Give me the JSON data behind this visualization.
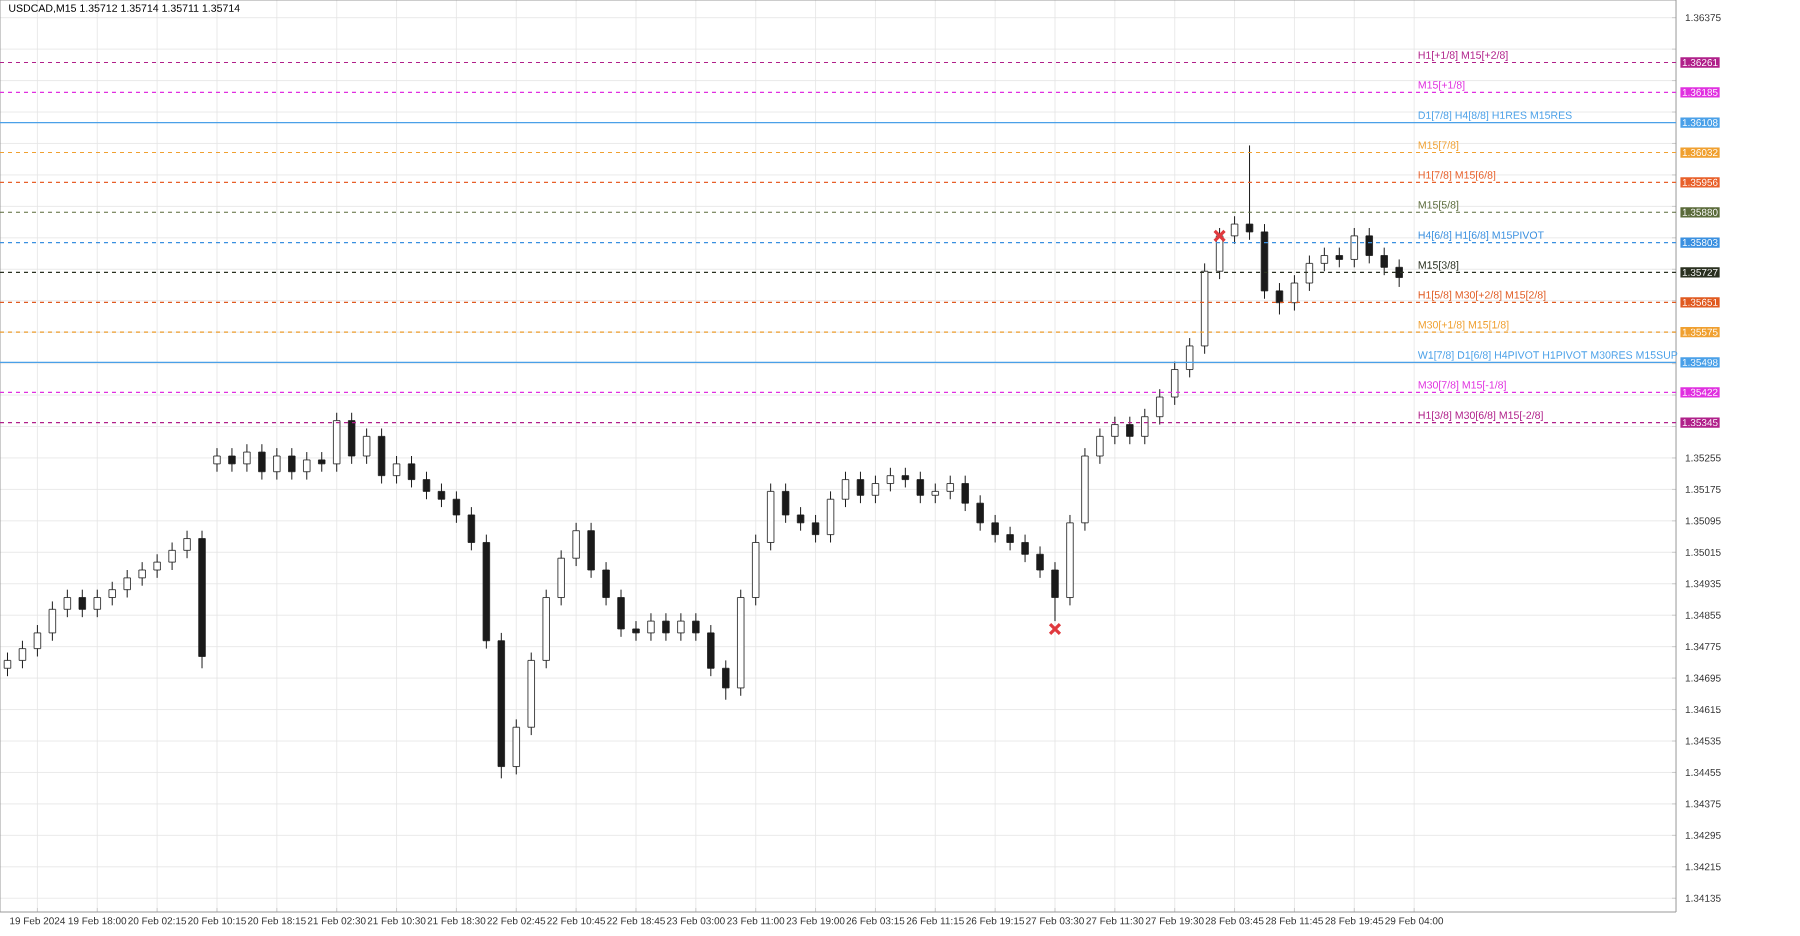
{
  "chart_data": {
    "type": "candlestick",
    "title": "USDCAD,M15 1.35712 1.35714 1.35711 1.35714",
    "color": "#1a1a1a",
    "categories": [
      null,
      null,
      "19 Feb 2024",
      null,
      null,
      null,
      "19 Feb 18:00",
      null,
      null,
      null,
      "20 Feb 02:15",
      null,
      null,
      null,
      "20 Feb 10:15",
      null,
      null,
      null,
      "20 Feb 18:15",
      null,
      null,
      null,
      "21 Feb 02:30",
      null,
      null,
      null,
      "21 Feb 10:30",
      null,
      null,
      null,
      "21 Feb 18:30",
      null,
      null,
      null,
      "22 Feb 02:45",
      null,
      null,
      null,
      "22 Feb 10:45",
      null,
      null,
      null,
      "22 Feb 18:45",
      null,
      null,
      null,
      "23 Feb 03:00",
      null,
      null,
      null,
      "23 Feb 11:00",
      null,
      null,
      null,
      "23 Feb 19:00",
      null,
      null,
      null,
      "26 Feb 03:15",
      null,
      null,
      null,
      "26 Feb 11:15",
      null,
      null,
      null,
      "26 Feb 19:15",
      null,
      null,
      null,
      "27 Feb 03:30",
      null,
      null,
      null,
      "27 Feb 11:30",
      null,
      null,
      null,
      "27 Feb 19:30",
      null,
      null,
      null,
      "28 Feb 03:45",
      null,
      null,
      null,
      "28 Feb 11:45",
      null,
      null,
      null,
      "28 Feb 19:45",
      null,
      null,
      null,
      "29 Feb 04:00",
      null,
      null,
      null,
      null,
      null,
      null,
      null,
      null,
      null,
      null,
      null,
      null,
      null,
      null,
      null,
      null,
      null
    ],
    "ohlc": [
      [
        1.3472,
        1.3476,
        1.347,
        1.3474
      ],
      [
        1.3474,
        1.3479,
        1.3472,
        1.3477
      ],
      [
        1.3477,
        1.3483,
        1.3475,
        1.3481
      ],
      [
        1.3481,
        1.3489,
        1.3479,
        1.3487
      ],
      [
        1.3487,
        1.3492,
        1.3485,
        1.349
      ],
      [
        1.349,
        1.3492,
        1.3485,
        1.3487
      ],
      [
        1.3487,
        1.3492,
        1.3485,
        1.349
      ],
      [
        1.349,
        1.3494,
        1.3488,
        1.3492
      ],
      [
        1.3492,
        1.3497,
        1.349,
        1.3495
      ],
      [
        1.3495,
        1.3499,
        1.3493,
        1.3497
      ],
      [
        1.3497,
        1.3501,
        1.3495,
        1.3499
      ],
      [
        1.3499,
        1.3504,
        1.3497,
        1.3502
      ],
      [
        1.3502,
        1.3507,
        1.35,
        1.3505
      ],
      [
        1.3505,
        1.3507,
        1.3472,
        1.3475
      ],
      [
        1.3524,
        1.3528,
        1.3522,
        1.3526
      ],
      [
        1.3526,
        1.3528,
        1.3522,
        1.3524
      ],
      [
        1.3524,
        1.3529,
        1.3522,
        1.3527
      ],
      [
        1.3527,
        1.3529,
        1.352,
        1.3522
      ],
      [
        1.3522,
        1.3528,
        1.352,
        1.3526
      ],
      [
        1.3526,
        1.3528,
        1.352,
        1.3522
      ],
      [
        1.3522,
        1.3527,
        1.352,
        1.3525
      ],
      [
        1.3525,
        1.3527,
        1.3522,
        1.3524
      ],
      [
        1.3524,
        1.3537,
        1.3522,
        1.3535
      ],
      [
        1.3535,
        1.3537,
        1.3524,
        1.3526
      ],
      [
        1.3526,
        1.3533,
        1.3524,
        1.3531
      ],
      [
        1.3531,
        1.3533,
        1.3519,
        1.3521
      ],
      [
        1.3521,
        1.3526,
        1.3519,
        1.3524
      ],
      [
        1.3524,
        1.3526,
        1.3518,
        1.352
      ],
      [
        1.352,
        1.3522,
        1.3515,
        1.3517
      ],
      [
        1.3517,
        1.3519,
        1.3513,
        1.3515
      ],
      [
        1.3515,
        1.3517,
        1.3509,
        1.3511
      ],
      [
        1.3511,
        1.3513,
        1.3502,
        1.3504
      ],
      [
        1.3504,
        1.3506,
        1.3477,
        1.3479
      ],
      [
        1.3479,
        1.3481,
        1.3444,
        1.3447
      ],
      [
        1.3447,
        1.3459,
        1.3445,
        1.3457
      ],
      [
        1.3457,
        1.3476,
        1.3455,
        1.3474
      ],
      [
        1.3474,
        1.3492,
        1.3472,
        1.349
      ],
      [
        1.349,
        1.3502,
        1.3488,
        1.35
      ],
      [
        1.35,
        1.3509,
        1.3498,
        1.3507
      ],
      [
        1.3507,
        1.3509,
        1.3495,
        1.3497
      ],
      [
        1.3497,
        1.3499,
        1.3488,
        1.349
      ],
      [
        1.349,
        1.3492,
        1.348,
        1.3482
      ],
      [
        1.3482,
        1.3484,
        1.3479,
        1.3481
      ],
      [
        1.3481,
        1.3486,
        1.3479,
        1.3484
      ],
      [
        1.3484,
        1.3486,
        1.3479,
        1.3481
      ],
      [
        1.3481,
        1.3486,
        1.3479,
        1.3484
      ],
      [
        1.3484,
        1.3486,
        1.3479,
        1.3481
      ],
      [
        1.3481,
        1.3483,
        1.347,
        1.3472
      ],
      [
        1.3472,
        1.3474,
        1.3464,
        1.3467
      ],
      [
        1.3467,
        1.3492,
        1.3465,
        1.349
      ],
      [
        1.349,
        1.3506,
        1.3488,
        1.3504
      ],
      [
        1.3504,
        1.3519,
        1.3502,
        1.3517
      ],
      [
        1.3517,
        1.3519,
        1.3509,
        1.3511
      ],
      [
        1.3511,
        1.3513,
        1.3507,
        1.3509
      ],
      [
        1.3509,
        1.3511,
        1.3504,
        1.3506
      ],
      [
        1.3506,
        1.3517,
        1.3504,
        1.3515
      ],
      [
        1.3515,
        1.3522,
        1.3513,
        1.352
      ],
      [
        1.352,
        1.3522,
        1.3514,
        1.3516
      ],
      [
        1.3516,
        1.3521,
        1.3514,
        1.3519
      ],
      [
        1.3519,
        1.3523,
        1.3517,
        1.3521
      ],
      [
        1.3521,
        1.3523,
        1.3518,
        1.352
      ],
      [
        1.352,
        1.3522,
        1.3514,
        1.3516
      ],
      [
        1.3516,
        1.3519,
        1.3514,
        1.3517
      ],
      [
        1.3517,
        1.3521,
        1.3515,
        1.3519
      ],
      [
        1.3519,
        1.3521,
        1.3512,
        1.3514
      ],
      [
        1.3514,
        1.3516,
        1.3507,
        1.3509
      ],
      [
        1.3509,
        1.3511,
        1.3504,
        1.3506
      ],
      [
        1.3506,
        1.3508,
        1.3502,
        1.3504
      ],
      [
        1.3504,
        1.3506,
        1.3499,
        1.3501
      ],
      [
        1.3501,
        1.3503,
        1.3495,
        1.3497
      ],
      [
        1.3497,
        1.3499,
        1.3484,
        1.349
      ],
      [
        1.349,
        1.3511,
        1.3488,
        1.3509
      ],
      [
        1.3509,
        1.3528,
        1.3507,
        1.3526
      ],
      [
        1.3526,
        1.3533,
        1.3524,
        1.3531
      ],
      [
        1.3531,
        1.3536,
        1.3529,
        1.3534
      ],
      [
        1.3534,
        1.3536,
        1.3529,
        1.3531
      ],
      [
        1.3531,
        1.3538,
        1.3529,
        1.3536
      ],
      [
        1.3536,
        1.3543,
        1.3534,
        1.3541
      ],
      [
        1.3541,
        1.355,
        1.3539,
        1.3548
      ],
      [
        1.3548,
        1.3556,
        1.3546,
        1.3554
      ],
      [
        1.3554,
        1.3575,
        1.3552,
        1.3573
      ],
      [
        1.3573,
        1.3584,
        1.3571,
        1.3582
      ],
      [
        1.3582,
        1.3587,
        1.358,
        1.3585
      ],
      [
        1.3585,
        1.3605,
        1.3581,
        1.3583
      ],
      [
        1.3583,
        1.3585,
        1.3566,
        1.3568
      ],
      [
        1.3568,
        1.357,
        1.3562,
        1.3565
      ],
      [
        1.3565,
        1.3572,
        1.3563,
        1.357
      ],
      [
        1.357,
        1.3577,
        1.3568,
        1.3575
      ],
      [
        1.3575,
        1.3579,
        1.3573,
        1.3577
      ],
      [
        1.3577,
        1.3579,
        1.3574,
        1.3576
      ],
      [
        1.3576,
        1.3584,
        1.3574,
        1.3582
      ],
      [
        1.3582,
        1.3584,
        1.3575,
        1.3577
      ],
      [
        1.3577,
        1.3579,
        1.3572,
        1.3574
      ],
      [
        1.3574,
        1.3576,
        1.3569,
        1.35714
      ],
      null,
      null,
      null,
      null,
      null,
      null,
      null,
      null,
      null,
      null,
      null,
      null,
      null,
      null,
      null,
      null,
      null,
      null
    ],
    "series": [
      {
        "type": "scatter",
        "color": "#e0393e",
        "marker": "cross",
        "values": [
          null,
          null,
          null,
          null,
          null,
          null,
          null,
          null,
          null,
          null,
          null,
          null,
          null,
          null,
          null,
          null,
          null,
          null,
          null,
          null,
          null,
          null,
          null,
          null,
          null,
          null,
          null,
          null,
          null,
          null,
          null,
          null,
          null,
          null,
          null,
          null,
          null,
          null,
          null,
          null,
          null,
          null,
          null,
          null,
          null,
          null,
          null,
          null,
          null,
          null,
          null,
          null,
          null,
          null,
          null,
          null,
          null,
          null,
          null,
          null,
          null,
          null,
          null,
          null,
          null,
          null,
          null,
          null,
          null,
          null,
          1.3482,
          null,
          null,
          null,
          null,
          null,
          null,
          null,
          null,
          null,
          null,
          1.3582,
          null,
          null,
          null,
          null,
          null,
          null,
          null,
          null,
          null,
          null,
          null,
          null,
          null,
          null,
          null,
          null,
          null,
          null,
          null,
          null,
          null,
          null,
          null,
          null,
          null,
          null,
          null,
          null,
          null,
          null
        ]
      }
    ],
    "ylim": [
      1.341,
      1.3642
    ],
    "yticks": [
      1.36375,
      {
        "value": 1.36295,
        "label": null
      },
      {
        "value": 1.36215,
        "label": null
      },
      {
        "value": 1.36135,
        "label": null
      },
      {
        "value": 1.36055,
        "label": null
      },
      {
        "value": 1.35975,
        "label": null
      },
      {
        "value": 1.35895,
        "label": null
      },
      {
        "value": 1.35815,
        "label": null
      },
      {
        "value": 1.35735,
        "label": null
      },
      {
        "value": 1.35655,
        "label": null
      },
      {
        "value": 1.35575,
        "label": null
      },
      {
        "value": 1.35495,
        "label": null
      },
      {
        "value": 1.35415,
        "label": null
      },
      {
        "value": 1.35335,
        "label": null
      },
      1.35255,
      1.35175,
      1.35095,
      1.35015,
      1.34935,
      1.34855,
      1.34775,
      1.34695,
      1.34615,
      1.34535,
      1.34455,
      1.34375,
      1.34295,
      1.34215,
      1.34135
    ],
    "ref_lines": [
      {
        "axis": "y",
        "value": 1.36261,
        "label": "H1[+1/8] M15[+2/8]",
        "color": "#b0208a",
        "line_style": "dashed"
      },
      {
        "axis": "y",
        "value": 1.36185,
        "label": "M15[+1/8]",
        "color": "#e030e0",
        "line_style": "dashed"
      },
      {
        "axis": "y",
        "value": 1.36108,
        "label": "D1[7/8] H4[8/8] H1RES M15RES",
        "color": "#4aa0e8",
        "line_style": "solid"
      },
      {
        "axis": "y",
        "value": 1.36032,
        "label": "M15[7/8]",
        "color": "#f0a030",
        "line_style": "dashed"
      },
      {
        "axis": "y",
        "value": 1.35956,
        "label": "H1[7/8] M15[6/8]",
        "color": "#e8602a",
        "line_style": "dashed"
      },
      {
        "axis": "y",
        "value": 1.3588,
        "label": "M15[5/8]",
        "color": "#5a6a3a",
        "line_style": "dashed"
      },
      {
        "axis": "y",
        "value": 1.35803,
        "label": "H4[6/8] H1[6/8] M15PIVOT",
        "color": "#3a90e0",
        "line_style": "dashed"
      },
      {
        "axis": "y",
        "value": 1.35727,
        "label": "M15[3/8]",
        "color": "#2a3020",
        "line_style": "dashed"
      },
      {
        "axis": "y",
        "value": 1.35651,
        "label": "H1[5/8] M30[+2/8] M15[2/8]",
        "color": "#e05a20",
        "line_style": "dashed"
      },
      {
        "axis": "y",
        "value": 1.35575,
        "label": "M30[+1/8] M15[1/8]",
        "color": "#f0a030",
        "line_style": "dashed"
      },
      {
        "axis": "y",
        "value": 1.35498,
        "label": "W1[7/8] D1[6/8] H4PIVOT H1PIVOT M30RES M15SUP",
        "color": "#4aa0e8",
        "line_style": "solid"
      },
      {
        "axis": "y",
        "value": 1.35422,
        "label": "M30[7/8] M15[-1/8]",
        "color": "#e030e0",
        "line_style": "dashed"
      },
      {
        "axis": "y",
        "value": 1.35345,
        "label": "H1[3/8] M30[6/8] M15[-2/8]",
        "color": "#b0208a",
        "line_style": "dashed"
      }
    ],
    "annotations": [
      "1.36261",
      "1.36185",
      "1.36108",
      "1.36032",
      "1.35956",
      "1.35880",
      "1.35803",
      "1.35727",
      "1.35651",
      "1.35575",
      "1.35498",
      "1.35422",
      "1.35345"
    ],
    "grid": true
  }
}
